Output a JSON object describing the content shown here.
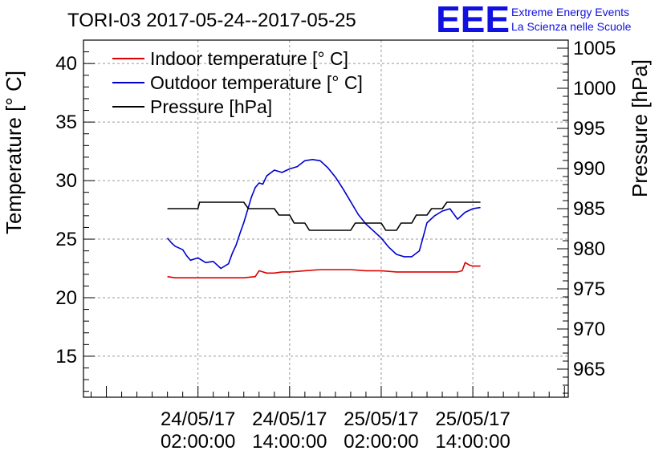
{
  "chart_data": {
    "type": "line",
    "title": "TORI-03 2017-05-24--2017-05-25",
    "logo": {
      "text": "EEE",
      "line1": "Extreme Energy Events",
      "line2": "La Scienza nelle Scuole",
      "color": "#1010e0"
    },
    "ylabel": "Temperature [° C]",
    "y2label": "Pressure [hPa]",
    "ylim": [
      11.5,
      42
    ],
    "y2lim": [
      961.5,
      1006
    ],
    "yticks": [
      15,
      20,
      25,
      30,
      35,
      40
    ],
    "y2ticks": [
      965,
      970,
      975,
      980,
      985,
      990,
      995,
      1000,
      1005
    ],
    "x_hours_range": [
      -13,
      50.5
    ],
    "xticks": [
      {
        "h": 2,
        "date": "24/05/17",
        "time": "02:00:00"
      },
      {
        "h": 14,
        "date": "24/05/17",
        "time": "14:00:00"
      },
      {
        "h": 26,
        "date": "25/05/17",
        "time": "02:00:00"
      },
      {
        "h": 38,
        "date": "25/05/17",
        "time": "14:00:00"
      }
    ],
    "grid": true,
    "legend_position": "top-left",
    "series": [
      {
        "name": "Indoor temperature [° C]",
        "axis": "left",
        "color": "#dd0000",
        "points": [
          [
            -2,
            21.8
          ],
          [
            -1,
            21.7
          ],
          [
            0,
            21.7
          ],
          [
            1,
            21.7
          ],
          [
            2,
            21.7
          ],
          [
            4,
            21.7
          ],
          [
            6,
            21.7
          ],
          [
            8,
            21.7
          ],
          [
            9.5,
            21.8
          ],
          [
            10,
            22.3
          ],
          [
            11,
            22.1
          ],
          [
            12,
            22.1
          ],
          [
            13,
            22.2
          ],
          [
            14,
            22.2
          ],
          [
            16,
            22.3
          ],
          [
            18,
            22.4
          ],
          [
            20,
            22.4
          ],
          [
            22,
            22.4
          ],
          [
            24,
            22.3
          ],
          [
            26,
            22.3
          ],
          [
            28,
            22.2
          ],
          [
            30,
            22.2
          ],
          [
            32,
            22.2
          ],
          [
            34,
            22.2
          ],
          [
            36,
            22.2
          ],
          [
            36.6,
            22.3
          ],
          [
            37,
            23.0
          ],
          [
            37.5,
            22.8
          ],
          [
            38,
            22.7
          ],
          [
            39,
            22.7
          ]
        ]
      },
      {
        "name": "Outdoor temperature [° C]",
        "axis": "left",
        "color": "#0000cc",
        "points": [
          [
            -2,
            25.1
          ],
          [
            -1.5,
            24.7
          ],
          [
            -1,
            24.4
          ],
          [
            0,
            24.1
          ],
          [
            0.5,
            23.6
          ],
          [
            1,
            23.2
          ],
          [
            2,
            23.4
          ],
          [
            3,
            23.0
          ],
          [
            4,
            23.1
          ],
          [
            5,
            22.5
          ],
          [
            6,
            22.9
          ],
          [
            6.5,
            23.8
          ],
          [
            7,
            24.5
          ],
          [
            7.5,
            25.5
          ],
          [
            8,
            26.4
          ],
          [
            8.5,
            27.5
          ],
          [
            9,
            28.6
          ],
          [
            9.5,
            29.4
          ],
          [
            10,
            29.8
          ],
          [
            10.5,
            29.7
          ],
          [
            11,
            30.4
          ],
          [
            12,
            30.9
          ],
          [
            13,
            30.7
          ],
          [
            14,
            31.0
          ],
          [
            15,
            31.2
          ],
          [
            16,
            31.7
          ],
          [
            17,
            31.8
          ],
          [
            18,
            31.7
          ],
          [
            19,
            31.1
          ],
          [
            20,
            30.3
          ],
          [
            21,
            29.3
          ],
          [
            22,
            28.2
          ],
          [
            23,
            27.1
          ],
          [
            24,
            26.3
          ],
          [
            25,
            25.7
          ],
          [
            26,
            25.1
          ],
          [
            27,
            24.3
          ],
          [
            28,
            23.7
          ],
          [
            29,
            23.5
          ],
          [
            30,
            23.5
          ],
          [
            31,
            24.0
          ],
          [
            31.5,
            25.2
          ],
          [
            32,
            26.4
          ],
          [
            33,
            27.0
          ],
          [
            34,
            27.4
          ],
          [
            35,
            27.6
          ],
          [
            36,
            26.7
          ],
          [
            37,
            27.3
          ],
          [
            38,
            27.6
          ],
          [
            39,
            27.7
          ]
        ]
      },
      {
        "name": "Pressure [hPa]",
        "axis": "right",
        "color": "#000000",
        "points": [
          [
            -2,
            985
          ],
          [
            2,
            985
          ],
          [
            2.2,
            985.8
          ],
          [
            8,
            985.8
          ],
          [
            8.6,
            985
          ],
          [
            12,
            985
          ],
          [
            12.6,
            984.2
          ],
          [
            14,
            984.2
          ],
          [
            14.6,
            983.2
          ],
          [
            16,
            983.2
          ],
          [
            16.6,
            982.3
          ],
          [
            22,
            982.3
          ],
          [
            22.6,
            983.2
          ],
          [
            26,
            983.2
          ],
          [
            26.6,
            982.3
          ],
          [
            28,
            982.3
          ],
          [
            28.6,
            983.2
          ],
          [
            30,
            983.2
          ],
          [
            30.6,
            984.2
          ],
          [
            32,
            984.2
          ],
          [
            32.6,
            985
          ],
          [
            34,
            985
          ],
          [
            34.6,
            985.8
          ],
          [
            39,
            985.8
          ]
        ]
      }
    ]
  }
}
